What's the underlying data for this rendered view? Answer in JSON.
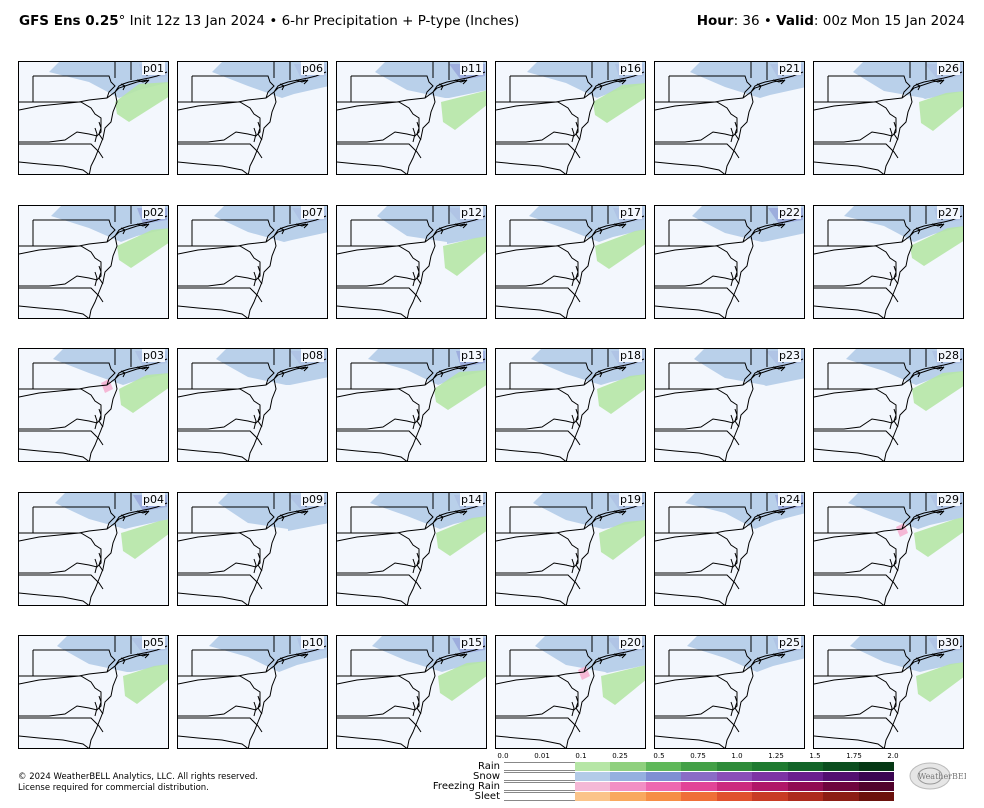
{
  "header": {
    "model": "GFS Ens 0.25",
    "degree": "°",
    "init": "Init 12z 13 Jan 2024",
    "bullet": "•",
    "product": "6-hr Precipitation + P-type (Inches)",
    "hour_label": "Hour",
    "hour_value": ": 36",
    "valid_label": "Valid",
    "valid_value": ": 00z Mon 15 Jan 2024"
  },
  "panels": [
    {
      "label": "p01"
    },
    {
      "label": "p06"
    },
    {
      "label": "p11"
    },
    {
      "label": "p16"
    },
    {
      "label": "p21"
    },
    {
      "label": "p26"
    },
    {
      "label": "p02"
    },
    {
      "label": "p07"
    },
    {
      "label": "p12"
    },
    {
      "label": "p17"
    },
    {
      "label": "p22"
    },
    {
      "label": "p27"
    },
    {
      "label": "p03"
    },
    {
      "label": "p08"
    },
    {
      "label": "p13"
    },
    {
      "label": "p18"
    },
    {
      "label": "p23"
    },
    {
      "label": "p28"
    },
    {
      "label": "p04"
    },
    {
      "label": "p09"
    },
    {
      "label": "p14"
    },
    {
      "label": "p19"
    },
    {
      "label": "p24"
    },
    {
      "label": "p29"
    },
    {
      "label": "p05"
    },
    {
      "label": "p10"
    },
    {
      "label": "p15"
    },
    {
      "label": "p20"
    },
    {
      "label": "p25"
    },
    {
      "label": "p30"
    }
  ],
  "legend": {
    "ticks": [
      "0.0",
      "0.01",
      "0.1",
      "0.25",
      "0.5",
      "0.75",
      "1.0",
      "1.25",
      "1.5",
      "1.75",
      "2.0"
    ],
    "rows": [
      {
        "name": "Rain",
        "colors": [
          "#ffffff",
          "#ffffff",
          "#b6e6a6",
          "#8fd07e",
          "#5fb85a",
          "#43a047",
          "#2e8b3a",
          "#1e7a30",
          "#126428",
          "#0b4e1f",
          "#053814"
        ]
      },
      {
        "name": "Snow",
        "colors": [
          "#ffffff",
          "#ffffff",
          "#b3cbe8",
          "#95b0df",
          "#7f8fd3",
          "#8a6cc6",
          "#8a4fb8",
          "#7d34a4",
          "#6a1f8e",
          "#520f70",
          "#3a0552"
        ]
      },
      {
        "name": "Freezing Rain",
        "colors": [
          "#ffffff",
          "#ffffff",
          "#f5b8d6",
          "#f28fc4",
          "#ee68b0",
          "#e24497",
          "#cc2a7e",
          "#b01668",
          "#900b52",
          "#6e043e",
          "#50022c"
        ]
      },
      {
        "name": "Sleet",
        "colors": [
          "#ffffff",
          "#ffffff",
          "#fbc48a",
          "#f9a95e",
          "#f68e46",
          "#ef6f38",
          "#e0502d",
          "#c83b24",
          "#ad2a1c",
          "#8c1d14",
          "#6b120d"
        ]
      }
    ]
  },
  "copyright": {
    "line1": "© 2024 WeatherBELL Analytics, LLC. All rights reserved.",
    "line2": "License required for commercial distribution."
  },
  "logo_text": "WeatherBELL",
  "colors": {
    "map_bg": "#f3f7fd",
    "snow_light": "#b3cbe8",
    "snow_mid": "#9aa9dc",
    "rain_light": "#b6e6a6",
    "freezing_rain": "#f5b8d6"
  }
}
